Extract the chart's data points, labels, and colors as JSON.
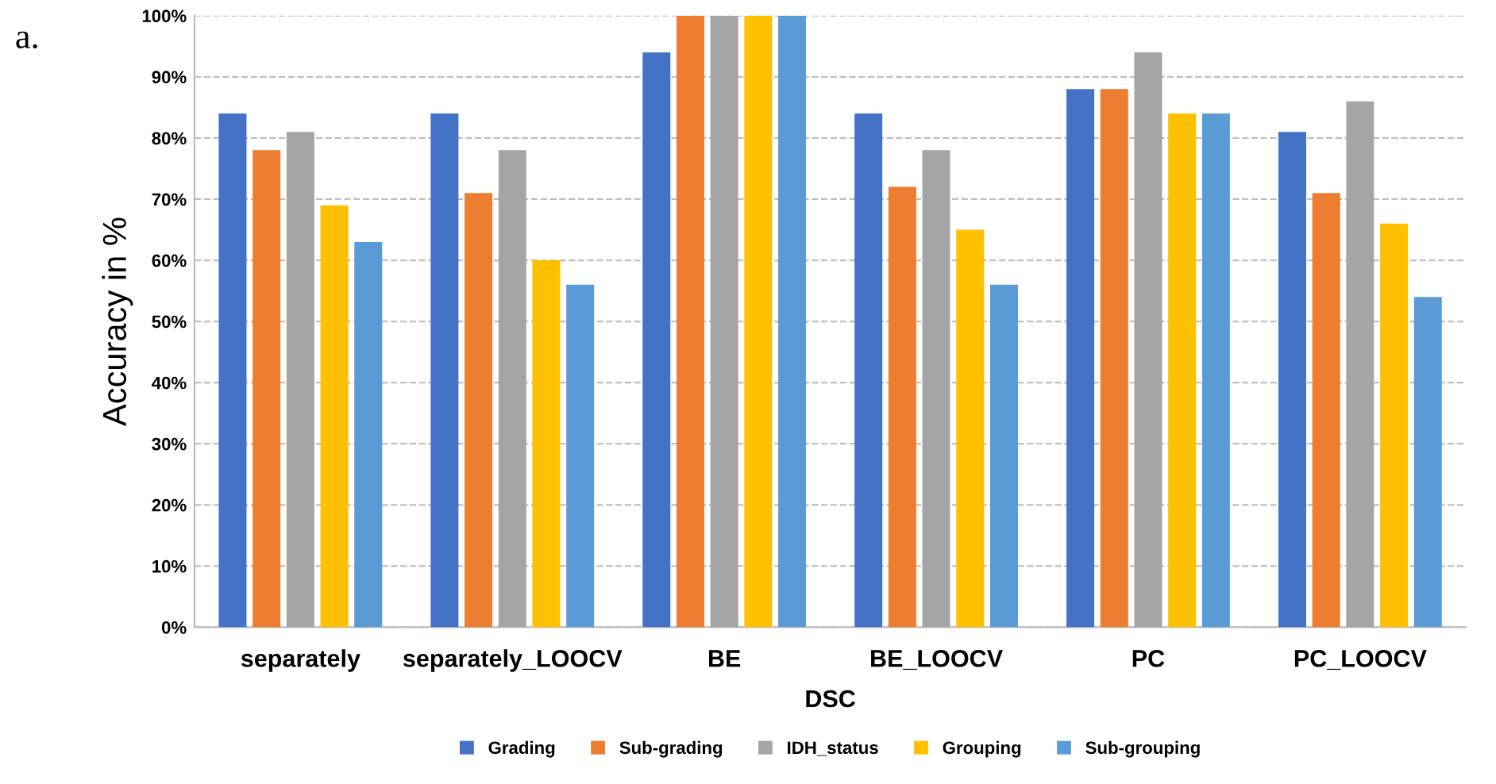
{
  "chart_data": {
    "type": "bar",
    "title": "a.",
    "xlabel": "DSC",
    "ylabel": "Accuracy in %",
    "categories": [
      "separately",
      "separately_LOOCV",
      "BE",
      "BE_LOOCV",
      "PC",
      "PC_LOOCV"
    ],
    "series": [
      {
        "name": "Grading",
        "color": "#4472c4",
        "values": [
          84,
          84,
          94,
          84,
          88,
          81
        ]
      },
      {
        "name": "Sub-grading",
        "color": "#ed7d31",
        "values": [
          78,
          71,
          100,
          72,
          88,
          71
        ]
      },
      {
        "name": "IDH_status",
        "color": "#a5a5a5",
        "values": [
          81,
          78,
          100,
          78,
          94,
          86
        ]
      },
      {
        "name": "Grouping",
        "color": "#ffc000",
        "values": [
          69,
          60,
          100,
          65,
          84,
          66
        ]
      },
      {
        "name": "Sub-grouping",
        "color": "#5b9bd5",
        "values": [
          63,
          56,
          100,
          56,
          84,
          54
        ]
      }
    ],
    "ylim": [
      0,
      100
    ],
    "yticks": [
      {
        "value": 0,
        "label": "0%"
      },
      {
        "value": 10,
        "label": "10%"
      },
      {
        "value": 20,
        "label": "20%"
      },
      {
        "value": 30,
        "label": "30%"
      },
      {
        "value": 40,
        "label": "40%"
      },
      {
        "value": 50,
        "label": "50%"
      },
      {
        "value": 60,
        "label": "60%"
      },
      {
        "value": 70,
        "label": "70%"
      },
      {
        "value": 80,
        "label": "80%"
      },
      {
        "value": 90,
        "label": "90%"
      },
      {
        "value": 100,
        "label": "100%"
      }
    ],
    "grid": "y",
    "legend": "bottom"
  }
}
